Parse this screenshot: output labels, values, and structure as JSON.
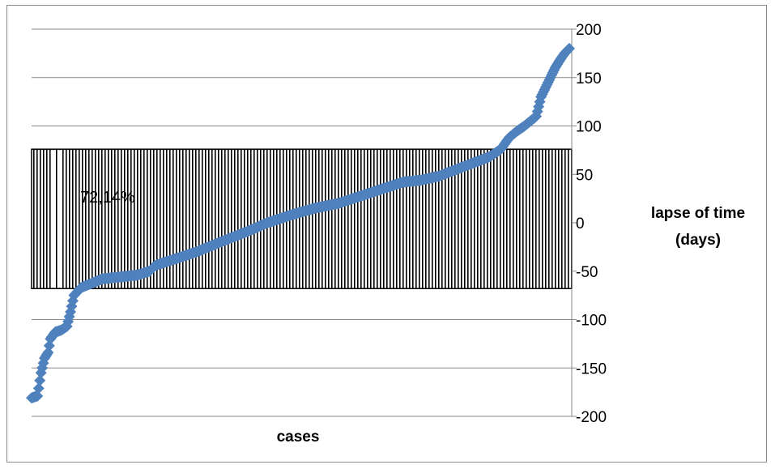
{
  "chart_data": {
    "type": "scatter",
    "title": "",
    "xlabel": "cases",
    "ylabel": "lapse of time (days)",
    "ylabel_lines": [
      "lapse of time",
      "(days)"
    ],
    "ylim": [
      -200,
      200
    ],
    "yticks": [
      -200,
      -150,
      -100,
      -50,
      0,
      50,
      100,
      150,
      200
    ],
    "y_axis_side": "right",
    "grid": true,
    "legend": "none",
    "marker": "diamond",
    "marker_color": "#4f81bd",
    "band": {
      "y_min": -68,
      "y_max": 76,
      "label": "72,14%",
      "style": "vertical hatch"
    },
    "anchors": [
      [
        0,
        -181
      ],
      [
        2,
        -180
      ],
      [
        5,
        -179
      ],
      [
        8,
        -155
      ],
      [
        11,
        -140
      ],
      [
        14,
        -134
      ],
      [
        16,
        -120
      ],
      [
        20,
        -113
      ],
      [
        25,
        -111
      ],
      [
        30,
        -107
      ],
      [
        33,
        -92
      ],
      [
        36,
        -75
      ],
      [
        42,
        -67
      ],
      [
        50,
        -63
      ],
      [
        60,
        -58
      ],
      [
        75,
        -56
      ],
      [
        90,
        -54
      ],
      [
        100,
        -50
      ],
      [
        105,
        -44
      ],
      [
        120,
        -38
      ],
      [
        140,
        -30
      ],
      [
        160,
        -20
      ],
      [
        185,
        -8
      ],
      [
        200,
        0
      ],
      [
        220,
        8
      ],
      [
        240,
        15
      ],
      [
        260,
        20
      ],
      [
        280,
        28
      ],
      [
        300,
        36
      ],
      [
        315,
        42
      ],
      [
        330,
        44
      ],
      [
        345,
        48
      ],
      [
        360,
        55
      ],
      [
        375,
        62
      ],
      [
        388,
        68
      ],
      [
        398,
        76
      ],
      [
        405,
        88
      ],
      [
        412,
        95
      ],
      [
        418,
        100
      ],
      [
        424,
        106
      ],
      [
        428,
        110
      ],
      [
        432,
        130
      ],
      [
        436,
        140
      ],
      [
        440,
        150
      ],
      [
        444,
        160
      ],
      [
        448,
        168
      ],
      [
        452,
        175
      ],
      [
        456,
        180
      ]
    ]
  }
}
